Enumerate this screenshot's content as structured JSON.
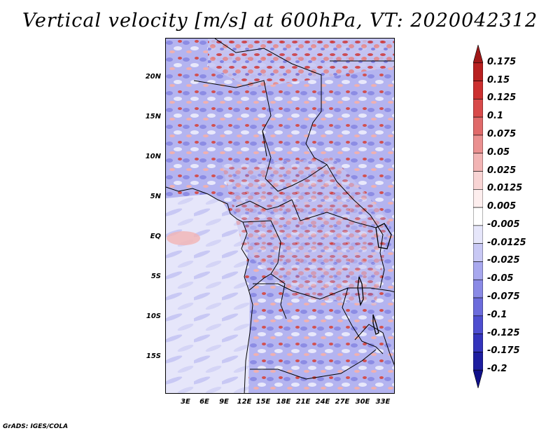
{
  "title": "Vertical velocity [m/s] at 600hPa, VT: 2020042312",
  "lat_labels": [
    "20N",
    "15N",
    "10N",
    "5N",
    "EQ",
    "5S",
    "10S",
    "15S"
  ],
  "lon_labels": [
    "3E",
    "6E",
    "9E",
    "12E",
    "15E",
    "18E",
    "21E",
    "24E",
    "27E",
    "30E",
    "33E"
  ],
  "colorbar": {
    "levels": [
      "0.175",
      "0.15",
      "0.125",
      "0.1",
      "0.075",
      "0.05",
      "0.025",
      "0.0125",
      "0.005",
      "-0.005",
      "-0.0125",
      "-0.025",
      "-0.05",
      "-0.075",
      "-0.1",
      "-0.125",
      "-0.175",
      "-0.2"
    ],
    "colors": [
      "#a01818",
      "#b82020",
      "#cc3030",
      "#d84a4a",
      "#e06a6a",
      "#ea9090",
      "#f2b4b4",
      "#f8d4d4",
      "#fdeeee",
      "#ffffff",
      "#e6e6fa",
      "#c8c8f4",
      "#a8a8ee",
      "#8a8ae6",
      "#6c6cdc",
      "#4e4ed0",
      "#3434bc",
      "#1e1ea0",
      "#10108a"
    ]
  },
  "credit": "GrADS: IGES/COLA"
}
